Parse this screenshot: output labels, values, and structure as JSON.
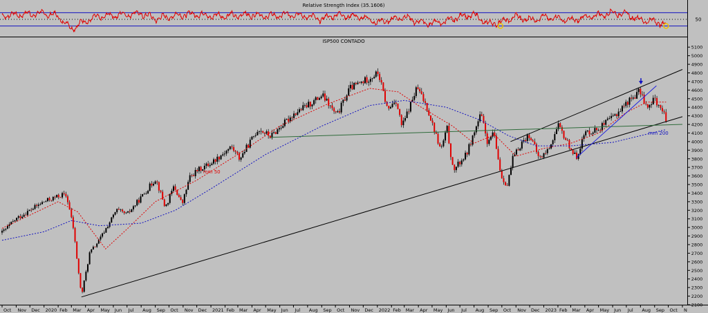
{
  "chart_data": [
    {
      "type": "line",
      "panel": "indicator",
      "title": "Relative Strength Index (35.1606)",
      "ylim": [
        0,
        100
      ],
      "guide_levels": [
        30,
        50,
        70
      ],
      "y_ticks": [
        "50"
      ],
      "series": [
        {
          "name": "",
          "color": "#e00000",
          "x": [
            "2019-10-01",
            "2019-11-01",
            "2019-12-01",
            "2020-01-01",
            "2020-02-01",
            "2020-03-01",
            "2020-04-01",
            "2020-05-01",
            "2020-06-01",
            "2020-07-01",
            "2020-08-01",
            "2020-09-01",
            "2020-10-01",
            "2020-11-01",
            "2020-12-01",
            "2021-01-01",
            "2021-03-01",
            "2021-04-01",
            "2021-05-01",
            "2021-06-01",
            "2021-07-01",
            "2021-08-01",
            "2021-09-01",
            "2021-10-01",
            "2021-11-01",
            "2021-12-01",
            "2022-01-01",
            "2022-03-01",
            "2022-04-01",
            "2022-05-01",
            "2022-06-01",
            "2022-07-01",
            "2022-08-01",
            "2022-09-01",
            "2022-10-01",
            "2022-11-01",
            "2022-12-01",
            "2023-01-01",
            "2023-02-01",
            "2023-03-01",
            "2023-04-01",
            "2023-05-01",
            "2023-06-01",
            "2023-07-01",
            "2023-08-01",
            "2023-09-01",
            "2023-09-26"
          ],
          "values": [
            62,
            64,
            66,
            68,
            60,
            22,
            45,
            58,
            62,
            65,
            68,
            52,
            58,
            64,
            66,
            60,
            62,
            64,
            60,
            62,
            65,
            60,
            50,
            64,
            60,
            56,
            40,
            58,
            42,
            38,
            44,
            58,
            64,
            36,
            42,
            58,
            48,
            56,
            54,
            46,
            56,
            62,
            70,
            66,
            48,
            44,
            35
          ]
        }
      ],
      "markers": [
        {
          "x": "2022-09-28",
          "y": 30,
          "color": "#f0c000"
        },
        {
          "x": "2023-09-26",
          "y": 30,
          "color": "#f0c000"
        }
      ]
    },
    {
      "type": "candlestick",
      "panel": "price",
      "title": "ISP500 CONTADO",
      "ylim": [
        2100,
        5150
      ],
      "y_ticks": [
        2100,
        2200,
        2300,
        2400,
        2500,
        2600,
        2700,
        2800,
        2900,
        3000,
        3100,
        3200,
        3300,
        3400,
        3500,
        3600,
        3700,
        3800,
        3900,
        4000,
        4100,
        4200,
        4300,
        4400,
        4500,
        4600,
        4700,
        4800,
        4900,
        5000,
        5100
      ],
      "x_tick_labels": [
        "Oct",
        "Nov",
        "Dec",
        "2020",
        "Feb",
        "Mar",
        "Apr",
        "May",
        "Jun",
        "Jul",
        "Aug",
        "Sep",
        "Oct",
        "Nov",
        "Dec",
        "2021",
        "Feb",
        "Mar",
        "Apr",
        "May",
        "Jun",
        "Jul",
        "Aug",
        "Sep",
        "Oct",
        "Nov",
        "Dec",
        "2022",
        "Feb",
        "Mar",
        "Apr",
        "May",
        "Jun",
        "Jul",
        "Aug",
        "Sep",
        "Oct",
        "Nov",
        "Dec",
        "2023",
        "Feb",
        "Mar",
        "Apr",
        "May",
        "Jun",
        "Jul",
        "Aug",
        "Sep",
        "Oct",
        "N"
      ],
      "x_tick_dates": [
        "2019-10-01",
        "2019-11-01",
        "2019-12-01",
        "2020-01-01",
        "2020-02-01",
        "2020-03-01",
        "2020-04-01",
        "2020-05-01",
        "2020-06-01",
        "2020-07-01",
        "2020-08-01",
        "2020-09-01",
        "2020-10-01",
        "2020-11-01",
        "2020-12-01",
        "2021-01-01",
        "2021-02-01",
        "2021-03-01",
        "2021-04-01",
        "2021-05-01",
        "2021-06-01",
        "2021-07-01",
        "2021-08-01",
        "2021-09-01",
        "2021-10-01",
        "2021-11-01",
        "2021-12-01",
        "2022-01-01",
        "2022-02-01",
        "2022-03-01",
        "2022-04-01",
        "2022-05-01",
        "2022-06-01",
        "2022-07-01",
        "2022-08-01",
        "2022-09-01",
        "2022-10-01",
        "2022-11-01",
        "2022-12-01",
        "2023-01-01",
        "2023-02-01",
        "2023-03-01",
        "2023-04-01",
        "2023-05-01",
        "2023-06-01",
        "2023-07-01",
        "2023-08-01",
        "2023-09-01",
        "2023-10-01",
        "2023-11-01"
      ],
      "price_path": [
        [
          "2019-10-01",
          2940
        ],
        [
          "2019-11-01",
          3100
        ],
        [
          "2019-12-01",
          3200
        ],
        [
          "2020-01-01",
          3300
        ],
        [
          "2020-02-10",
          3380
        ],
        [
          "2020-02-20",
          3360
        ],
        [
          "2020-03-05",
          3000
        ],
        [
          "2020-03-23",
          2200
        ],
        [
          "2020-04-10",
          2700
        ],
        [
          "2020-05-01",
          2850
        ],
        [
          "2020-06-08",
          3200
        ],
        [
          "2020-07-01",
          3150
        ],
        [
          "2020-08-01",
          3350
        ],
        [
          "2020-09-02",
          3570
        ],
        [
          "2020-09-23",
          3230
        ],
        [
          "2020-10-12",
          3480
        ],
        [
          "2020-10-30",
          3270
        ],
        [
          "2020-11-15",
          3580
        ],
        [
          "2020-12-01",
          3660
        ],
        [
          "2021-01-01",
          3750
        ],
        [
          "2021-02-15",
          3940
        ],
        [
          "2021-03-05",
          3800
        ],
        [
          "2021-04-15",
          4150
        ],
        [
          "2021-05-12",
          4060
        ],
        [
          "2021-07-01",
          4320
        ],
        [
          "2021-08-15",
          4470
        ],
        [
          "2021-09-02",
          4540
        ],
        [
          "2021-10-04",
          4300
        ],
        [
          "2021-11-01",
          4620
        ],
        [
          "2021-12-01",
          4700
        ],
        [
          "2022-01-03",
          4800
        ],
        [
          "2022-01-24",
          4360
        ],
        [
          "2022-02-10",
          4500
        ],
        [
          "2022-02-24",
          4170
        ],
        [
          "2022-03-29",
          4630
        ],
        [
          "2022-04-20",
          4400
        ],
        [
          "2022-05-20",
          3900
        ],
        [
          "2022-06-03",
          4150
        ],
        [
          "2022-06-16",
          3660
        ],
        [
          "2022-07-15",
          3850
        ],
        [
          "2022-08-16",
          4320
        ],
        [
          "2022-09-01",
          3960
        ],
        [
          "2022-09-12",
          4120
        ],
        [
          "2022-09-30",
          3590
        ],
        [
          "2022-10-13",
          3490
        ],
        [
          "2022-10-25",
          3800
        ],
        [
          "2022-11-15",
          4000
        ],
        [
          "2022-12-01",
          4080
        ],
        [
          "2022-12-22",
          3800
        ],
        [
          "2023-01-10",
          3900
        ],
        [
          "2023-02-02",
          4180
        ],
        [
          "2023-03-13",
          3810
        ],
        [
          "2023-04-01",
          4100
        ],
        [
          "2023-05-01",
          4150
        ],
        [
          "2023-06-01",
          4280
        ],
        [
          "2023-07-01",
          4450
        ],
        [
          "2023-07-31",
          4590
        ],
        [
          "2023-08-18",
          4370
        ],
        [
          "2023-09-01",
          4510
        ],
        [
          "2023-09-26",
          4270
        ]
      ],
      "lines": [
        {
          "name": "mm 50",
          "color": "#e00000",
          "style": "dotted",
          "label_at": {
            "x": "2020-12-15",
            "y": 3630
          },
          "points": [
            [
              "2019-10-01",
              2990
            ],
            [
              "2020-02-01",
              3300
            ],
            [
              "2020-03-15",
              3180
            ],
            [
              "2020-05-15",
              2750
            ],
            [
              "2020-07-01",
              2980
            ],
            [
              "2020-09-01",
              3300
            ],
            [
              "2020-12-01",
              3550
            ],
            [
              "2021-03-01",
              3850
            ],
            [
              "2021-06-01",
              4180
            ],
            [
              "2021-09-15",
              4440
            ],
            [
              "2021-12-15",
              4620
            ],
            [
              "2022-02-15",
              4580
            ],
            [
              "2022-04-01",
              4420
            ],
            [
              "2022-06-15",
              4180
            ],
            [
              "2022-08-01",
              3980
            ],
            [
              "2022-09-15",
              4080
            ],
            [
              "2022-11-01",
              3830
            ],
            [
              "2023-01-01",
              3920
            ],
            [
              "2023-03-01",
              3980
            ],
            [
              "2023-05-01",
              4100
            ],
            [
              "2023-07-01",
              4340
            ],
            [
              "2023-08-15",
              4460
            ],
            [
              "2023-09-26",
              4460
            ]
          ]
        },
        {
          "name": "mm 200",
          "color": "#1010c0",
          "style": "dotted",
          "label_at": {
            "x": "2023-08-18",
            "y": 4080
          },
          "points": [
            [
              "2019-10-01",
              2850
            ],
            [
              "2020-01-01",
              2950
            ],
            [
              "2020-03-01",
              3080
            ],
            [
              "2020-05-01",
              3020
            ],
            [
              "2020-08-01",
              3050
            ],
            [
              "2020-10-15",
              3200
            ],
            [
              "2021-01-01",
              3450
            ],
            [
              "2021-05-01",
              3850
            ],
            [
              "2021-09-01",
              4180
            ],
            [
              "2021-12-15",
              4420
            ],
            [
              "2022-03-01",
              4480
            ],
            [
              "2022-06-01",
              4400
            ],
            [
              "2022-08-15",
              4250
            ],
            [
              "2022-10-15",
              4070
            ],
            [
              "2022-12-15",
              3950
            ],
            [
              "2023-03-01",
              3950
            ],
            [
              "2023-06-01",
              3990
            ],
            [
              "2023-09-26",
              4140
            ]
          ]
        },
        {
          "name": "",
          "color": "#000000",
          "style": "solid",
          "points": [
            [
              "2020-03-23",
              2190
            ],
            [
              "2023-11-01",
              4290
            ]
          ]
        },
        {
          "name": "",
          "color": "#000000",
          "style": "solid",
          "points": [
            [
              "2022-10-20",
              4000
            ],
            [
              "2023-11-01",
              4840
            ]
          ]
        },
        {
          "name": "",
          "color": "#2e6b3a",
          "style": "solid",
          "points": [
            [
              "2021-05-12",
              4050
            ],
            [
              "2023-11-01",
              4200
            ]
          ]
        },
        {
          "name": "",
          "color": "#2020e0",
          "style": "solid",
          "points": [
            [
              "2023-03-13",
              3810
            ],
            [
              "2023-09-05",
              4650
            ]
          ]
        }
      ],
      "annotations": [
        {
          "type": "arrow-down",
          "x": "2023-08-02",
          "y": 4690,
          "color": "#1010c0"
        }
      ]
    }
  ]
}
